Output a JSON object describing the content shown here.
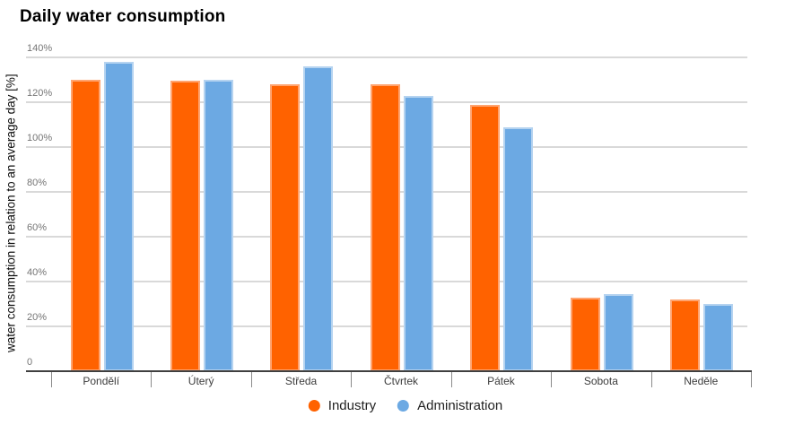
{
  "chart_data": {
    "type": "bar",
    "title": "Daily water consumption",
    "xlabel": "",
    "ylabel": "water consumption in relation to an average day [%]",
    "categories": [
      "Pondělí",
      "Úterý",
      "Středa",
      "Čtvrtek",
      "Pátek",
      "Sobota",
      "Neděle"
    ],
    "series": [
      {
        "name": "Industry",
        "color": "#ff6200",
        "edge_color": "#ffa470",
        "values": [
          130,
          129.5,
          128,
          128,
          119,
          33,
          32
        ]
      },
      {
        "name": "Administration",
        "color": "#6ca9e3",
        "edge_color": "#b5d3f0",
        "values": [
          138,
          130,
          136,
          123,
          109,
          34.5,
          30
        ]
      }
    ],
    "y_ticks": [
      {
        "value": 0,
        "label": "0"
      },
      {
        "value": 20,
        "label": "20%"
      },
      {
        "value": 40,
        "label": "40%"
      },
      {
        "value": 60,
        "label": "60%"
      },
      {
        "value": 80,
        "label": "80%"
      },
      {
        "value": 100,
        "label": "100%"
      },
      {
        "value": 120,
        "label": "120%"
      },
      {
        "value": 140,
        "label": "140%"
      }
    ],
    "ylim": [
      0,
      140
    ],
    "grid": true,
    "legend_position": "bottom"
  }
}
